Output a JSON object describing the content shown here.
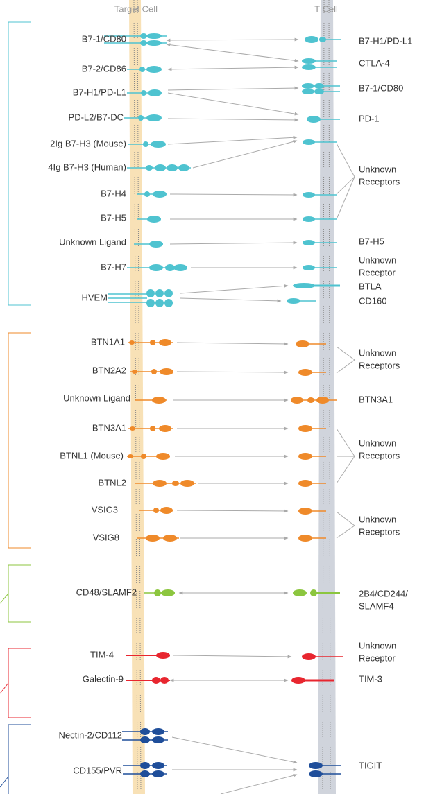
{
  "header": {
    "left": "Target Cell",
    "right": "T Cell"
  },
  "ligands": [
    "B7-1/CD80",
    "B7-2/CD86",
    "B7-H1/PD-L1",
    "PD-L2/B7-DC",
    "2Ig B7-H3 (Mouse)",
    "4Ig B7-H3 (Human)",
    "B7-H4",
    "B7-H5",
    "Unknown Ligand",
    "B7-H7",
    "HVEM",
    "BTN1A1",
    "BTN2A2",
    "Unknown Ligand",
    "BTN3A1",
    "BTNL1 (Mouse)",
    "BTNL2",
    "VSIG3",
    "VSIG8",
    "CD48/SLAMF2",
    "TIM-4",
    "Galectin-9",
    "Nectin-2/CD112",
    "CD155/PVR"
  ],
  "receptors": [
    [
      "B7-H1/PD-L1"
    ],
    [
      "CTLA-4"
    ],
    [
      "B7-1/CD80"
    ],
    [
      "PD-1"
    ],
    [
      "Unknown",
      "Receptors"
    ],
    [
      "B7-H5"
    ],
    [
      "Unknown",
      "Receptor"
    ],
    [
      "BTLA"
    ],
    [
      "CD160"
    ],
    [
      "Unknown",
      "Receptors"
    ],
    [
      "BTN3A1"
    ],
    [
      "Unknown",
      "Receptors"
    ],
    [
      "Unknown",
      "Receptors"
    ],
    [
      "2B4/CD244/",
      "SLAMF4"
    ],
    [
      "Unknown",
      "Receptor"
    ],
    [
      "TIM-3"
    ],
    [
      "TIGIT"
    ]
  ]
}
